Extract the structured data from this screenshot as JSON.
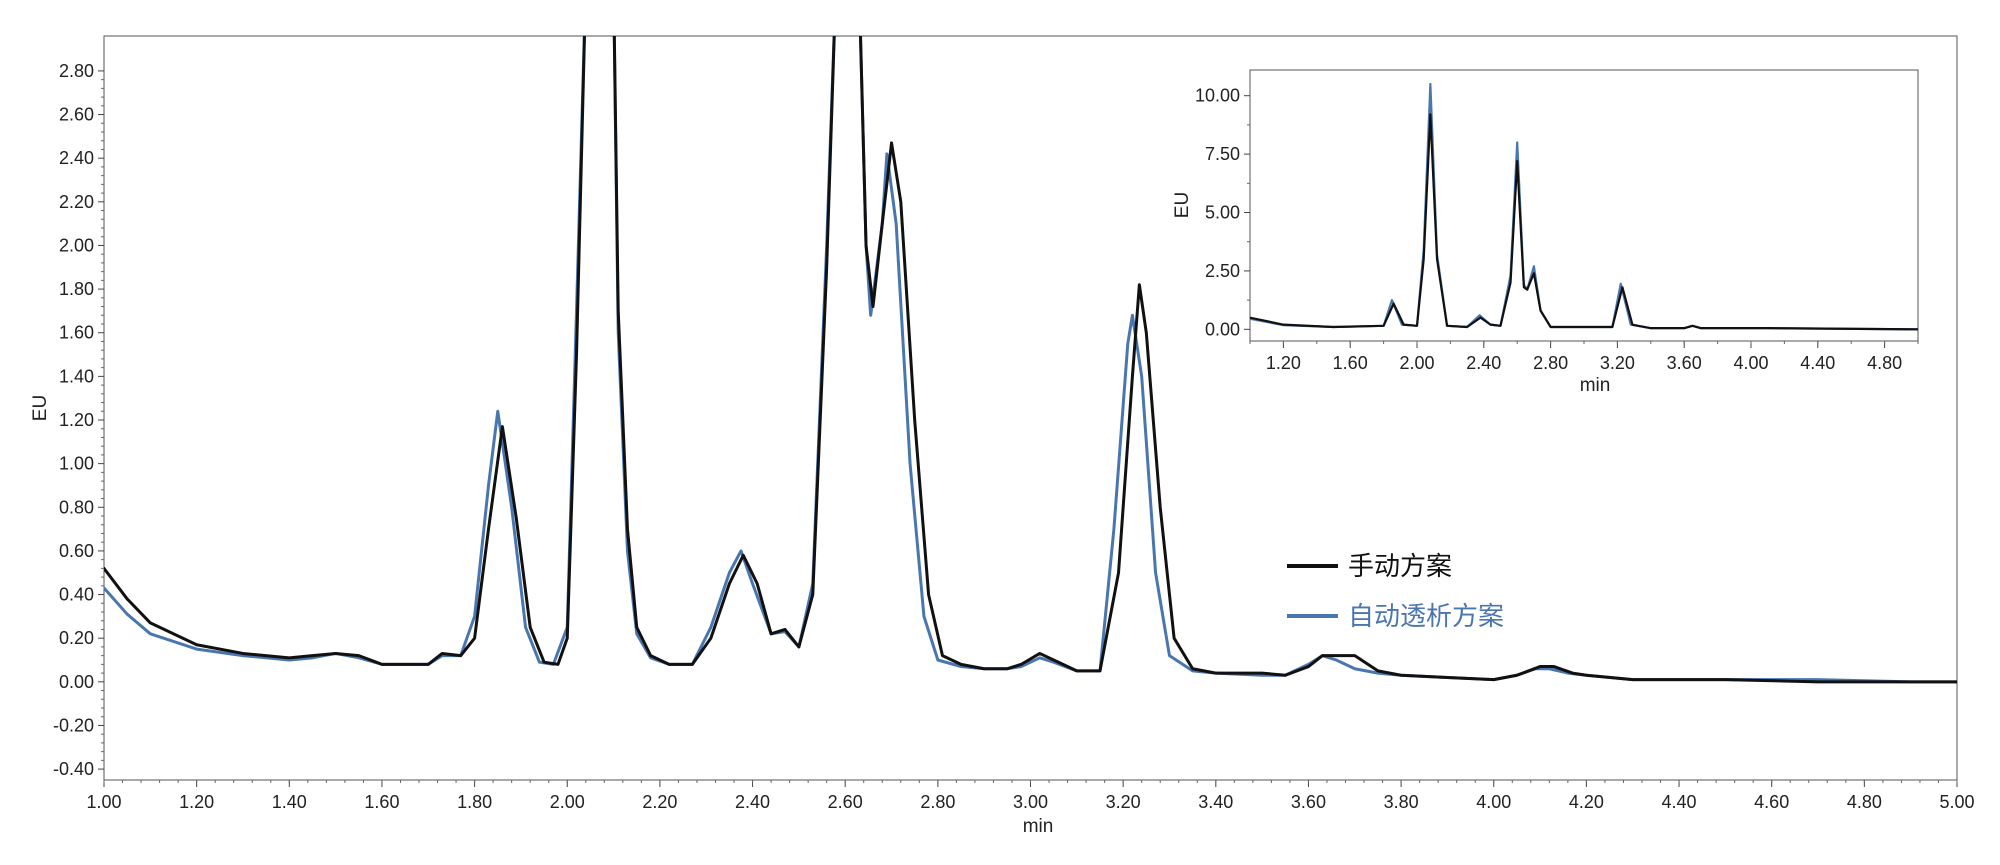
{
  "chart_data": [
    {
      "type": "line",
      "role": "main",
      "xlabel": "min",
      "ylabel": "EU",
      "xlim": [
        1.0,
        5.0
      ],
      "ylim": [
        -0.45,
        2.96
      ],
      "x_ticks": [
        "1.00",
        "1.20",
        "1.40",
        "1.60",
        "1.80",
        "2.00",
        "2.20",
        "2.40",
        "2.60",
        "2.80",
        "3.00",
        "3.20",
        "3.40",
        "3.60",
        "3.80",
        "4.00",
        "4.20",
        "4.40",
        "4.60",
        "4.80",
        "5.00"
      ],
      "y_ticks": [
        "-0.40",
        "-0.20",
        "0.00",
        "0.20",
        "0.40",
        "0.60",
        "0.80",
        "1.00",
        "1.20",
        "1.40",
        "1.60",
        "1.80",
        "2.00",
        "2.20",
        "2.40",
        "2.60",
        "2.80"
      ],
      "grid": false,
      "legend_position": "center-right",
      "series": [
        {
          "name": "手动方案",
          "color": "#111111",
          "x": [
            1.0,
            1.05,
            1.1,
            1.2,
            1.3,
            1.4,
            1.45,
            1.5,
            1.55,
            1.6,
            1.7,
            1.73,
            1.77,
            1.8,
            1.83,
            1.86,
            1.89,
            1.92,
            1.95,
            1.98,
            2.0,
            2.02,
            2.04,
            2.1,
            2.11,
            2.13,
            2.15,
            2.18,
            2.22,
            2.27,
            2.31,
            2.35,
            2.38,
            2.41,
            2.44,
            2.47,
            2.5,
            2.53,
            2.56,
            2.58,
            2.63,
            2.645,
            2.66,
            2.68,
            2.7,
            2.72,
            2.75,
            2.78,
            2.81,
            2.85,
            2.9,
            2.95,
            2.98,
            3.02,
            3.05,
            3.1,
            3.15,
            3.19,
            3.22,
            3.235,
            3.25,
            3.28,
            3.31,
            3.35,
            3.4,
            3.5,
            3.55,
            3.6,
            3.63,
            3.67,
            3.7,
            3.75,
            3.8,
            3.9,
            4.0,
            4.05,
            4.1,
            4.13,
            4.17,
            4.2,
            4.3,
            4.5,
            4.7,
            4.9,
            5.0
          ],
          "values": [
            0.52,
            0.38,
            0.27,
            0.17,
            0.13,
            0.11,
            0.12,
            0.13,
            0.12,
            0.08,
            0.08,
            0.13,
            0.12,
            0.2,
            0.7,
            1.17,
            0.75,
            0.25,
            0.09,
            0.08,
            0.2,
            1.5,
            3.2,
            3.2,
            1.7,
            0.7,
            0.25,
            0.12,
            0.08,
            0.08,
            0.2,
            0.45,
            0.58,
            0.45,
            0.22,
            0.24,
            0.16,
            0.4,
            1.9,
            3.2,
            3.2,
            2.0,
            1.72,
            2.1,
            2.47,
            2.2,
            1.2,
            0.4,
            0.12,
            0.08,
            0.06,
            0.06,
            0.08,
            0.13,
            0.1,
            0.05,
            0.05,
            0.5,
            1.4,
            1.82,
            1.6,
            0.8,
            0.2,
            0.06,
            0.04,
            0.04,
            0.03,
            0.07,
            0.12,
            0.12,
            0.12,
            0.05,
            0.03,
            0.02,
            0.01,
            0.03,
            0.07,
            0.07,
            0.04,
            0.03,
            0.01,
            0.01,
            0.0,
            0.0,
            0.0
          ]
        },
        {
          "name": "自动透析方案",
          "color": "#4a76b0",
          "x": [
            1.0,
            1.05,
            1.1,
            1.2,
            1.3,
            1.4,
            1.45,
            1.5,
            1.55,
            1.6,
            1.7,
            1.73,
            1.77,
            1.8,
            1.83,
            1.85,
            1.88,
            1.91,
            1.94,
            1.97,
            2.0,
            2.02,
            2.04,
            2.1,
            2.11,
            2.13,
            2.15,
            2.18,
            2.22,
            2.27,
            2.31,
            2.35,
            2.375,
            2.4,
            2.44,
            2.47,
            2.5,
            2.53,
            2.56,
            2.58,
            2.63,
            2.645,
            2.655,
            2.68,
            2.69,
            2.71,
            2.74,
            2.77,
            2.8,
            2.85,
            2.9,
            2.95,
            2.98,
            3.02,
            3.05,
            3.1,
            3.15,
            3.18,
            3.21,
            3.22,
            3.24,
            3.27,
            3.3,
            3.35,
            3.4,
            3.5,
            3.55,
            3.6,
            3.63,
            3.66,
            3.7,
            3.75,
            3.8,
            3.9,
            4.0,
            4.05,
            4.09,
            4.12,
            4.16,
            4.2,
            4.3,
            4.5,
            4.7,
            4.9,
            5.0
          ],
          "values": [
            0.43,
            0.31,
            0.22,
            0.15,
            0.12,
            0.1,
            0.11,
            0.13,
            0.11,
            0.08,
            0.08,
            0.12,
            0.12,
            0.3,
            0.9,
            1.24,
            0.8,
            0.25,
            0.09,
            0.08,
            0.25,
            1.7,
            3.2,
            3.2,
            1.6,
            0.6,
            0.22,
            0.11,
            0.08,
            0.08,
            0.25,
            0.5,
            0.6,
            0.45,
            0.22,
            0.23,
            0.16,
            0.45,
            2.0,
            3.2,
            3.2,
            2.0,
            1.68,
            2.1,
            2.42,
            2.1,
            1.0,
            0.3,
            0.1,
            0.07,
            0.06,
            0.06,
            0.07,
            0.11,
            0.09,
            0.05,
            0.05,
            0.7,
            1.55,
            1.68,
            1.4,
            0.5,
            0.12,
            0.05,
            0.04,
            0.03,
            0.03,
            0.08,
            0.12,
            0.1,
            0.06,
            0.04,
            0.03,
            0.02,
            0.01,
            0.03,
            0.06,
            0.06,
            0.04,
            0.03,
            0.01,
            0.01,
            0.01,
            0.0,
            0.0
          ]
        }
      ]
    },
    {
      "type": "line",
      "role": "inset",
      "xlabel": "min",
      "ylabel": "EU",
      "xlim": [
        1.0,
        5.0
      ],
      "ylim": [
        -0.5,
        11.1
      ],
      "x_ticks": [
        "1.20",
        "1.60",
        "2.00",
        "2.40",
        "2.80",
        "3.20",
        "3.60",
        "4.00",
        "4.40",
        "4.80"
      ],
      "y_ticks": [
        "0.00",
        "2.50",
        "5.00",
        "7.50",
        "10.00"
      ],
      "grid": false,
      "series": [
        {
          "name": "手动方案",
          "color": "#111111",
          "x": [
            1.0,
            1.2,
            1.5,
            1.8,
            1.86,
            1.92,
            2.0,
            2.04,
            2.08,
            2.12,
            2.18,
            2.3,
            2.38,
            2.44,
            2.5,
            2.56,
            2.6,
            2.64,
            2.66,
            2.7,
            2.74,
            2.8,
            3.0,
            3.17,
            3.23,
            3.29,
            3.4,
            3.6,
            3.65,
            3.7,
            4.1,
            5.0
          ],
          "values": [
            0.5,
            0.2,
            0.1,
            0.15,
            1.1,
            0.2,
            0.15,
            3.0,
            9.2,
            3.0,
            0.15,
            0.1,
            0.5,
            0.2,
            0.15,
            2.0,
            7.2,
            1.8,
            1.7,
            2.4,
            0.8,
            0.1,
            0.1,
            0.1,
            1.8,
            0.2,
            0.05,
            0.05,
            0.15,
            0.05,
            0.05,
            0.0
          ]
        },
        {
          "name": "自动透析方案",
          "color": "#4a76b0",
          "x": [
            1.0,
            1.2,
            1.5,
            1.8,
            1.85,
            1.91,
            2.0,
            2.04,
            2.08,
            2.12,
            2.18,
            2.3,
            2.375,
            2.44,
            2.5,
            2.56,
            2.6,
            2.64,
            2.66,
            2.7,
            2.74,
            2.8,
            3.0,
            3.17,
            3.22,
            3.28,
            3.4,
            3.6,
            3.65,
            3.7,
            4.1,
            5.0
          ],
          "values": [
            0.45,
            0.18,
            0.1,
            0.15,
            1.25,
            0.2,
            0.15,
            3.4,
            10.5,
            3.2,
            0.15,
            0.1,
            0.6,
            0.2,
            0.15,
            2.3,
            8.0,
            1.9,
            1.7,
            2.7,
            0.8,
            0.1,
            0.1,
            0.1,
            1.95,
            0.2,
            0.05,
            0.05,
            0.15,
            0.05,
            0.05,
            0.0
          ]
        }
      ]
    }
  ]
}
